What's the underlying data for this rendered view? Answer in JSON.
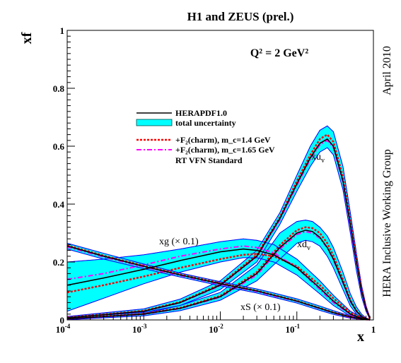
{
  "chart_data": {
    "type": "line",
    "title": "H1 and ZEUS (prel.)",
    "annotation_q2": "Q² = 2 GeV²",
    "side_date": "April 2010",
    "side_group": "HERA Inclusive Working Group",
    "xlabel": "x",
    "ylabel": "xf",
    "xscale": "log",
    "xlim": [
      0.0001,
      1
    ],
    "ylim": [
      0,
      1
    ],
    "grid": false,
    "legend_position": "upper-left",
    "x_ticks": [
      {
        "value": 0.0001,
        "base": "10",
        "exp": "-4"
      },
      {
        "value": 0.001,
        "base": "10",
        "exp": "-3"
      },
      {
        "value": 0.01,
        "base": "10",
        "exp": "-2"
      },
      {
        "value": 0.1,
        "base": "10",
        "exp": "-1"
      },
      {
        "value": 1,
        "base": "1",
        "exp": ""
      }
    ],
    "y_ticks": [
      {
        "value": 0,
        "label": "0"
      },
      {
        "value": 0.2,
        "label": "0.2"
      },
      {
        "value": 0.4,
        "label": "0.4"
      },
      {
        "value": 0.6,
        "label": "0.6"
      },
      {
        "value": 0.8,
        "label": "0.8"
      },
      {
        "value": 1,
        "label": "1"
      }
    ],
    "legend": [
      {
        "key": "hera",
        "label": "HERAPDF1.0",
        "style": "solid"
      },
      {
        "key": "band",
        "label": "total uncertainty",
        "style": "band"
      },
      {
        "key": "c14",
        "label": "+F₂(charm), m_c=1.4 GeV",
        "style": "dashed"
      },
      {
        "key": "c165",
        "label": "+F₂(charm), m_c=1.65 GeV",
        "style": "dashdot"
      },
      {
        "key": "rt",
        "label": "RT VFN Standard",
        "style": "text"
      }
    ],
    "curve_labels": [
      {
        "key": "xuv",
        "text": "xu",
        "sub": "v"
      },
      {
        "key": "xdv",
        "text": "xd",
        "sub": "v"
      },
      {
        "key": "xg",
        "text": "xg (× 0.1)",
        "sub": ""
      },
      {
        "key": "xs",
        "text": "xS (× 0.1)",
        "sub": ""
      }
    ],
    "colors": {
      "band": "#00ffff",
      "band_edge": "#004c4c",
      "central": "#000000",
      "mc14": "#ff0000",
      "mc165": "#ff00ff",
      "variant_band": "#0000ff"
    },
    "series": [
      {
        "key": "xuv",
        "name": "xu_v",
        "x": [
          0.0001,
          0.001,
          0.003,
          0.01,
          0.03,
          0.06,
          0.1,
          0.15,
          0.2,
          0.25,
          0.3,
          0.4,
          0.5,
          0.6,
          0.7,
          0.8,
          0.9
        ],
        "y": [
          0.007,
          0.03,
          0.06,
          0.12,
          0.22,
          0.35,
          0.47,
          0.56,
          0.61,
          0.625,
          0.6,
          0.48,
          0.33,
          0.2,
          0.1,
          0.04,
          0.005
        ],
        "band_up": [
          0.012,
          0.038,
          0.072,
          0.135,
          0.24,
          0.37,
          0.5,
          0.6,
          0.655,
          0.67,
          0.65,
          0.53,
          0.37,
          0.23,
          0.12,
          0.05,
          0.008
        ],
        "band_dn": [
          0.002,
          0.022,
          0.05,
          0.105,
          0.2,
          0.33,
          0.445,
          0.53,
          0.58,
          0.595,
          0.57,
          0.45,
          0.3,
          0.17,
          0.08,
          0.03,
          0.002
        ],
        "c14": [
          0.008,
          0.032,
          0.062,
          0.123,
          0.225,
          0.355,
          0.48,
          0.57,
          0.625,
          0.64,
          0.615,
          0.495,
          0.34,
          0.21,
          0.105,
          0.042,
          0.006
        ],
        "c165": [
          0.007,
          0.03,
          0.059,
          0.118,
          0.218,
          0.345,
          0.465,
          0.555,
          0.605,
          0.62,
          0.595,
          0.475,
          0.325,
          0.195,
          0.097,
          0.038,
          0.005
        ]
      },
      {
        "key": "xdv",
        "name": "xd_v",
        "x": [
          0.0001,
          0.001,
          0.003,
          0.01,
          0.03,
          0.06,
          0.1,
          0.13,
          0.16,
          0.2,
          0.25,
          0.3,
          0.4,
          0.5,
          0.6,
          0.7,
          0.8,
          0.9
        ],
        "y": [
          0.004,
          0.02,
          0.04,
          0.08,
          0.16,
          0.25,
          0.3,
          0.31,
          0.305,
          0.285,
          0.25,
          0.21,
          0.13,
          0.065,
          0.03,
          0.012,
          0.004,
          0.001
        ],
        "band_up": [
          0.008,
          0.026,
          0.05,
          0.095,
          0.19,
          0.3,
          0.34,
          0.345,
          0.34,
          0.32,
          0.29,
          0.25,
          0.165,
          0.09,
          0.045,
          0.02,
          0.007,
          0.002
        ],
        "band_dn": [
          0.001,
          0.014,
          0.032,
          0.068,
          0.135,
          0.21,
          0.265,
          0.275,
          0.27,
          0.255,
          0.22,
          0.18,
          0.105,
          0.048,
          0.02,
          0.007,
          0.002,
          0.0
        ],
        "c14": [
          0.005,
          0.021,
          0.042,
          0.083,
          0.165,
          0.258,
          0.31,
          0.32,
          0.317,
          0.3,
          0.265,
          0.222,
          0.14,
          0.07,
          0.033,
          0.013,
          0.004,
          0.001
        ],
        "c165": [
          0.004,
          0.019,
          0.039,
          0.078,
          0.155,
          0.245,
          0.295,
          0.305,
          0.3,
          0.282,
          0.248,
          0.207,
          0.128,
          0.063,
          0.029,
          0.011,
          0.004,
          0.001
        ]
      },
      {
        "key": "xg",
        "name": "xg (× 0.1)",
        "x": [
          0.0001,
          0.0003,
          0.001,
          0.003,
          0.01,
          0.02,
          0.03,
          0.05,
          0.1,
          0.2,
          0.3,
          0.5,
          0.7,
          0.9
        ],
        "y": [
          0.12,
          0.145,
          0.175,
          0.205,
          0.235,
          0.245,
          0.24,
          0.225,
          0.18,
          0.11,
          0.065,
          0.02,
          0.005,
          0.0005
        ],
        "band_up": [
          0.2,
          0.21,
          0.225,
          0.245,
          0.27,
          0.28,
          0.275,
          0.26,
          0.21,
          0.135,
          0.085,
          0.03,
          0.01,
          0.002
        ],
        "band_dn": [
          0.03,
          0.075,
          0.125,
          0.165,
          0.2,
          0.215,
          0.215,
          0.2,
          0.155,
          0.09,
          0.05,
          0.013,
          0.003,
          0.0
        ],
        "c14": [
          0.095,
          0.12,
          0.15,
          0.18,
          0.21,
          0.225,
          0.228,
          0.22,
          0.185,
          0.12,
          0.075,
          0.025,
          0.007,
          0.001
        ],
        "c165": [
          0.14,
          0.16,
          0.19,
          0.22,
          0.245,
          0.255,
          0.25,
          0.232,
          0.18,
          0.105,
          0.06,
          0.018,
          0.004,
          0.0005
        ]
      },
      {
        "key": "xs",
        "name": "xS (× 0.1)",
        "x": [
          0.0001,
          0.0003,
          0.001,
          0.003,
          0.01,
          0.03,
          0.05,
          0.1,
          0.2,
          0.3,
          0.5,
          0.7,
          0.9
        ],
        "y": [
          0.255,
          0.22,
          0.185,
          0.155,
          0.125,
          0.1,
          0.085,
          0.065,
          0.04,
          0.025,
          0.01,
          0.003,
          0.0005
        ],
        "band_up": [
          0.265,
          0.23,
          0.193,
          0.162,
          0.132,
          0.107,
          0.093,
          0.073,
          0.048,
          0.032,
          0.014,
          0.005,
          0.001
        ],
        "band_dn": [
          0.245,
          0.21,
          0.177,
          0.148,
          0.118,
          0.093,
          0.078,
          0.058,
          0.033,
          0.019,
          0.006,
          0.001,
          0.0
        ],
        "c14": [
          0.258,
          0.222,
          0.187,
          0.157,
          0.127,
          0.101,
          0.086,
          0.066,
          0.041,
          0.026,
          0.011,
          0.003,
          0.0005
        ],
        "c165": [
          0.252,
          0.217,
          0.183,
          0.153,
          0.123,
          0.098,
          0.083,
          0.064,
          0.039,
          0.024,
          0.009,
          0.002,
          0.0004
        ]
      }
    ]
  }
}
